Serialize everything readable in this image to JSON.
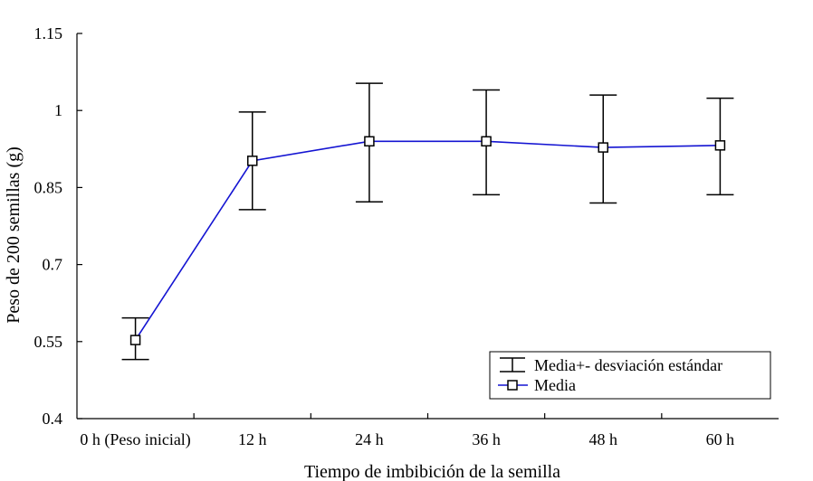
{
  "chart_data": {
    "type": "line",
    "title": "",
    "xlabel": "Tiempo de imbibición de la semilla",
    "ylabel": "Peso de 200 semillas (g)",
    "categories": [
      "0 h (Peso inicial)",
      "12 h",
      "24 h",
      "36 h",
      "48 h",
      "60 h"
    ],
    "ylim": [
      0.4,
      1.15
    ],
    "yticks": [
      0.4,
      0.55,
      0.7,
      0.85,
      1,
      1.15
    ],
    "ytick_labels": [
      "0.4",
      "0.55",
      "0.7",
      "0.85",
      "1",
      "1.15"
    ],
    "series": [
      {
        "name": "Media",
        "values": [
          0.553,
          0.902,
          0.94,
          0.94,
          0.928,
          0.932
        ],
        "upper": [
          0.596,
          0.997,
          1.053,
          1.04,
          1.03,
          1.024
        ],
        "lower": [
          0.515,
          0.807,
          0.822,
          0.836,
          0.82,
          0.836
        ]
      }
    ],
    "legend": {
      "position": "bottom-right",
      "entries": [
        "Media+- desviación estándar",
        "Media"
      ]
    },
    "colors": {
      "line": "#1414d2",
      "axis": "#000000",
      "marker_fill": "#ffffff"
    }
  }
}
